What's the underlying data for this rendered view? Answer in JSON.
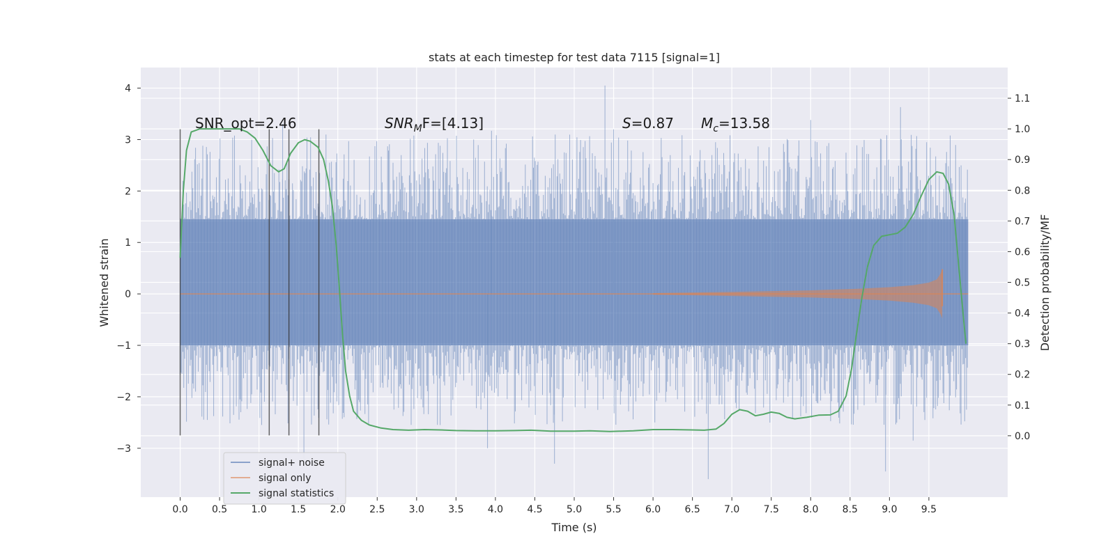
{
  "chart_data": {
    "type": "line",
    "title": "stats at each timestep for test data 7115 [signal=1]",
    "xlabel": "Time (s)",
    "ylabel_left": "Whitened strain",
    "ylabel_right": "Detection probability/MF",
    "xlim": [
      -0.5,
      10.5
    ],
    "ylim_left": [
      -3.95,
      4.4
    ],
    "ylim_right": [
      -0.2,
      1.2
    ],
    "x_ticks": [
      0.0,
      0.5,
      1.0,
      1.5,
      2.0,
      2.5,
      3.0,
      3.5,
      4.0,
      4.5,
      5.0,
      5.5,
      6.0,
      6.5,
      7.0,
      7.5,
      8.0,
      8.5,
      9.0,
      9.5
    ],
    "x_tick_labels": [
      "0.0",
      "0.5",
      "1.0",
      "1.5",
      "2.0",
      "2.5",
      "3.0",
      "3.5",
      "4.0",
      "4.5",
      "5.0",
      "5.5",
      "6.0",
      "6.5",
      "7.0",
      "7.5",
      "8.0",
      "8.5",
      "9.0",
      "9.5"
    ],
    "y_left_ticks": [
      -3,
      -2,
      -1,
      0,
      1,
      2,
      3,
      4
    ],
    "y_left_tick_labels": [
      "−3",
      "−2",
      "−1",
      "0",
      "1",
      "2",
      "3",
      "4"
    ],
    "y_right_ticks": [
      0.0,
      0.1,
      0.2,
      0.3,
      0.4,
      0.5,
      0.6,
      0.7,
      0.8,
      0.9,
      1.0,
      1.1
    ],
    "y_right_tick_labels": [
      "0.0",
      "0.1",
      "0.2",
      "0.3",
      "0.4",
      "0.5",
      "0.6",
      "0.7",
      "0.8",
      "0.9",
      "1.0",
      "1.1"
    ],
    "grid": true,
    "legend_position": "bottom-left",
    "annotations": {
      "snr_opt": "SNR_opt=2.46",
      "snr_mf_sym": "SNR",
      "snr_mf_sub": "M",
      "snr_mf_tail": "F=[4.13]",
      "s_sym": "S",
      "s_val": "=0.87",
      "mc_sym": "M",
      "mc_sub": "c",
      "mc_val": "=13.58"
    },
    "vertical_markers": [
      {
        "x": 0.0,
        "y_top": 3.2,
        "y_bottom": -2.75
      },
      {
        "x": 1.13,
        "y_top": 3.2,
        "y_bottom": -2.75
      },
      {
        "x": 1.38,
        "y_top": 3.2,
        "y_bottom": -2.75
      },
      {
        "x": 1.76,
        "y_top": 3.2,
        "y_bottom": -2.75
      }
    ],
    "noise_envelope": {
      "x_start": 0.0,
      "x_end": 10.0,
      "core_min": -1.0,
      "core_max": 1.45,
      "peaks": [
        {
          "x": 5.39,
          "y": 4.05
        },
        {
          "x": 9.14,
          "y": 3.63
        },
        {
          "x": 1.3,
          "y": 3.3
        },
        {
          "x": 8.0,
          "y": 3.38
        },
        {
          "x": 3.95,
          "y": 3.17
        },
        {
          "x": 5.5,
          "y": 3.2
        },
        {
          "x": 1.57,
          "y": -3.2
        },
        {
          "x": 8.95,
          "y": -3.45
        },
        {
          "x": 6.7,
          "y": -3.6
        },
        {
          "x": 4.75,
          "y": -3.3
        },
        {
          "x": 3.9,
          "y": -3.0
        },
        {
          "x": 9.3,
          "y": -2.85
        }
      ]
    },
    "series": [
      {
        "name": "signal+ noise",
        "color": "#4c72b0",
        "kind": "noise-band"
      },
      {
        "name": "signal only",
        "color": "#dd8452",
        "kind": "chirp",
        "chirp": [
          {
            "x": 6.0,
            "amp": 0.015
          },
          {
            "x": 7.0,
            "amp": 0.04
          },
          {
            "x": 8.0,
            "amp": 0.07
          },
          {
            "x": 8.6,
            "amp": 0.1
          },
          {
            "x": 9.0,
            "amp": 0.13
          },
          {
            "x": 9.3,
            "amp": 0.17
          },
          {
            "x": 9.5,
            "amp": 0.22
          },
          {
            "x": 9.6,
            "amp": 0.28
          },
          {
            "x": 9.65,
            "amp": 0.4
          },
          {
            "x": 9.67,
            "amp": 0.48
          }
        ]
      },
      {
        "name": "signal statistics",
        "color": "#55a868",
        "axis": "right",
        "points": [
          [
            0.0,
            0.58
          ],
          [
            0.04,
            0.8
          ],
          [
            0.08,
            0.93
          ],
          [
            0.14,
            0.99
          ],
          [
            0.25,
            1.0
          ],
          [
            0.5,
            1.0
          ],
          [
            0.75,
            1.0
          ],
          [
            0.85,
            0.99
          ],
          [
            0.95,
            0.97
          ],
          [
            1.05,
            0.93
          ],
          [
            1.15,
            0.88
          ],
          [
            1.25,
            0.86
          ],
          [
            1.32,
            0.87
          ],
          [
            1.4,
            0.92
          ],
          [
            1.5,
            0.955
          ],
          [
            1.58,
            0.965
          ],
          [
            1.65,
            0.96
          ],
          [
            1.75,
            0.94
          ],
          [
            1.82,
            0.9
          ],
          [
            1.88,
            0.83
          ],
          [
            1.93,
            0.75
          ],
          [
            1.98,
            0.62
          ],
          [
            2.02,
            0.48
          ],
          [
            2.06,
            0.33
          ],
          [
            2.1,
            0.21
          ],
          [
            2.15,
            0.13
          ],
          [
            2.2,
            0.08
          ],
          [
            2.3,
            0.05
          ],
          [
            2.4,
            0.035
          ],
          [
            2.55,
            0.025
          ],
          [
            2.7,
            0.02
          ],
          [
            2.9,
            0.018
          ],
          [
            3.1,
            0.02
          ],
          [
            3.3,
            0.019
          ],
          [
            3.5,
            0.017
          ],
          [
            3.75,
            0.016
          ],
          [
            4.0,
            0.016
          ],
          [
            4.25,
            0.017
          ],
          [
            4.45,
            0.018
          ],
          [
            4.7,
            0.015
          ],
          [
            5.0,
            0.015
          ],
          [
            5.2,
            0.016
          ],
          [
            5.45,
            0.014
          ],
          [
            5.75,
            0.016
          ],
          [
            6.0,
            0.02
          ],
          [
            6.25,
            0.02
          ],
          [
            6.5,
            0.019
          ],
          [
            6.65,
            0.018
          ],
          [
            6.8,
            0.022
          ],
          [
            6.9,
            0.04
          ],
          [
            7.0,
            0.07
          ],
          [
            7.1,
            0.085
          ],
          [
            7.2,
            0.08
          ],
          [
            7.3,
            0.065
          ],
          [
            7.4,
            0.07
          ],
          [
            7.5,
            0.077
          ],
          [
            7.6,
            0.073
          ],
          [
            7.7,
            0.06
          ],
          [
            7.8,
            0.055
          ],
          [
            7.95,
            0.06
          ],
          [
            8.1,
            0.067
          ],
          [
            8.25,
            0.068
          ],
          [
            8.35,
            0.08
          ],
          [
            8.45,
            0.13
          ],
          [
            8.52,
            0.22
          ],
          [
            8.58,
            0.33
          ],
          [
            8.65,
            0.45
          ],
          [
            8.72,
            0.55
          ],
          [
            8.8,
            0.62
          ],
          [
            8.9,
            0.65
          ],
          [
            9.0,
            0.655
          ],
          [
            9.1,
            0.66
          ],
          [
            9.2,
            0.68
          ],
          [
            9.3,
            0.72
          ],
          [
            9.4,
            0.78
          ],
          [
            9.5,
            0.835
          ],
          [
            9.6,
            0.86
          ],
          [
            9.68,
            0.855
          ],
          [
            9.75,
            0.82
          ],
          [
            9.82,
            0.72
          ],
          [
            9.88,
            0.55
          ],
          [
            9.94,
            0.38
          ],
          [
            9.97,
            0.3
          ]
        ]
      }
    ]
  }
}
